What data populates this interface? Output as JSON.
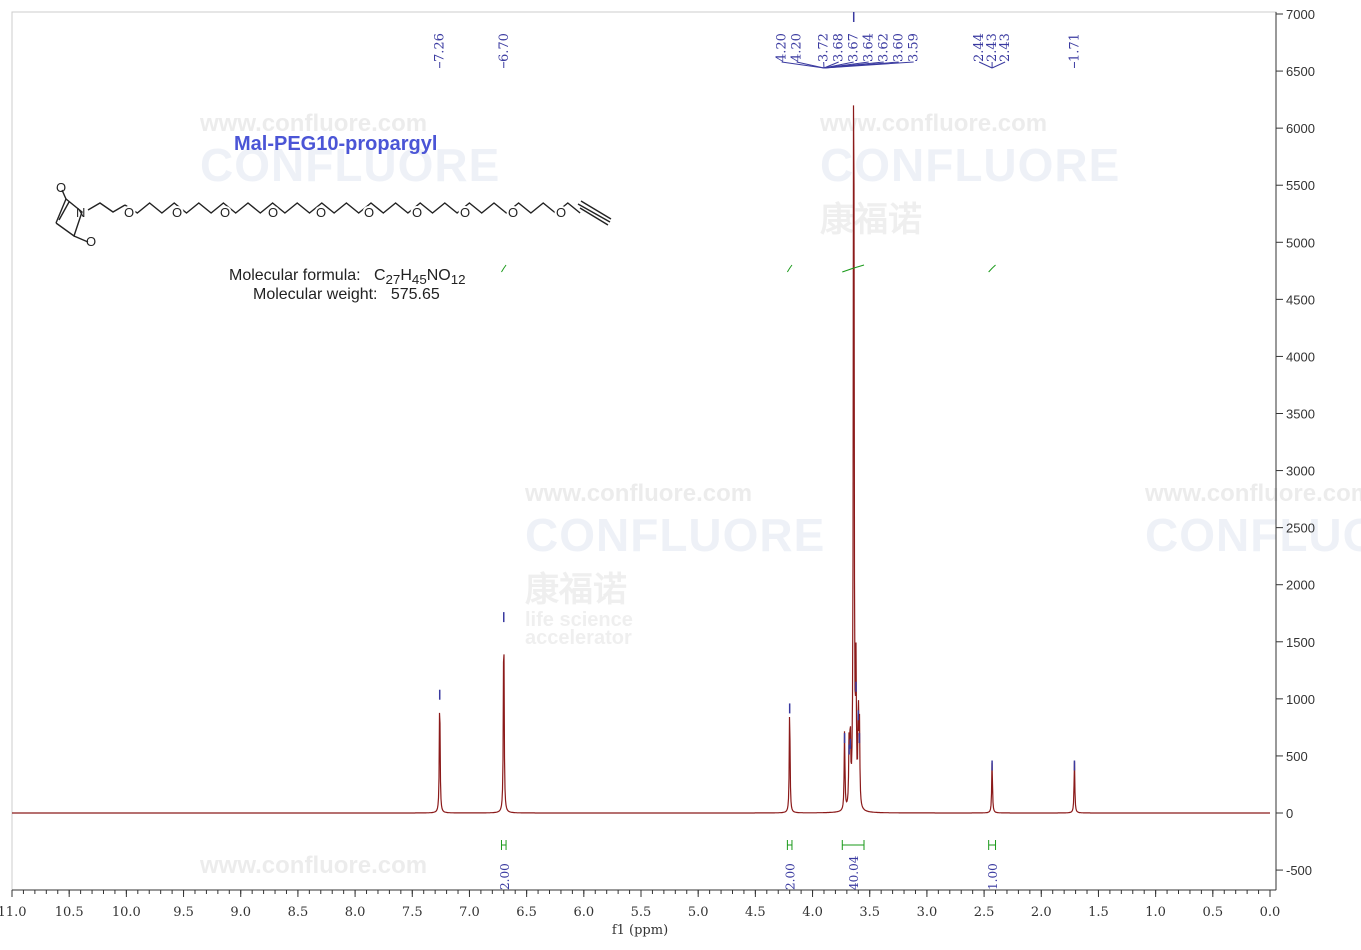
{
  "compound": {
    "name": "Mal-PEG10-propargyl",
    "formula_label": "Molecular formula:",
    "formula_c": "C",
    "formula_c_n": "27",
    "formula_h": "H",
    "formula_h_n": "45",
    "formula_no": "NO",
    "formula_o_n": "12",
    "weight_label": "Molecular weight:",
    "weight": "575.65"
  },
  "watermark": {
    "url": "www.confluore.com",
    "brand": "CONFLUORE",
    "cn": "康福诺",
    "tag1": "life science",
    "tag2": "accelerator"
  },
  "chart_data": {
    "type": "line",
    "xlabel": "f1 (ppm)",
    "xlim": [
      11.0,
      0.0
    ],
    "ylim": [
      -700,
      7000
    ],
    "xticks": [
      "11.0",
      "10.5",
      "10.0",
      "9.5",
      "9.0",
      "8.5",
      "8.0",
      "7.5",
      "7.0",
      "6.5",
      "6.0",
      "5.5",
      "5.0",
      "4.5",
      "4.0",
      "3.5",
      "3.0",
      "2.5",
      "2.0",
      "1.5",
      "1.0",
      "0.5",
      "0.0"
    ],
    "yticks": [
      -500,
      0,
      500,
      1000,
      1500,
      2000,
      2500,
      3000,
      3500,
      4000,
      4500,
      5000,
      5500,
      6000,
      6500,
      7000
    ],
    "grid": false,
    "peaks": [
      {
        "ppm": 7.26,
        "height": 1080
      },
      {
        "ppm": 6.7,
        "height": 1760
      },
      {
        "ppm": 4.2,
        "height": 960
      },
      {
        "ppm": 3.72,
        "height": 700
      },
      {
        "ppm": 3.68,
        "height": 600
      },
      {
        "ppm": 3.67,
        "height": 650
      },
      {
        "ppm": 3.64,
        "height": 7500
      },
      {
        "ppm": 3.62,
        "height": 1150
      },
      {
        "ppm": 3.6,
        "height": 900
      },
      {
        "ppm": 3.59,
        "height": 700
      },
      {
        "ppm": 2.43,
        "height": 460
      },
      {
        "ppm": 1.71,
        "height": 460
      }
    ],
    "peak_labels": [
      {
        "groups": [
          "7.26"
        ],
        "at": 7.26
      },
      {
        "groups": [
          "6.70"
        ],
        "at": 6.7
      },
      {
        "groups": [
          "4.20",
          "4.20",
          "3.72",
          "3.68",
          "3.67",
          "3.64",
          "3.62",
          "3.60",
          "3.59"
        ],
        "at": 3.9
      },
      {
        "groups": [
          "2.44",
          "2.43",
          "2.43"
        ],
        "at": 2.43
      },
      {
        "groups": [
          "1.71"
        ],
        "at": 1.71
      }
    ],
    "integrals": [
      {
        "from": 6.72,
        "to": 6.68,
        "value": "2.00"
      },
      {
        "from": 4.22,
        "to": 4.18,
        "value": "2.00"
      },
      {
        "from": 3.74,
        "to": 3.55,
        "value": "40.04"
      },
      {
        "from": 2.46,
        "to": 2.4,
        "value": "1.00"
      }
    ],
    "colors": {
      "spectrum": "#8b1a1a",
      "labels": "#3a3aa0",
      "integral": "#1a9a1a",
      "axis": "#333333"
    }
  }
}
